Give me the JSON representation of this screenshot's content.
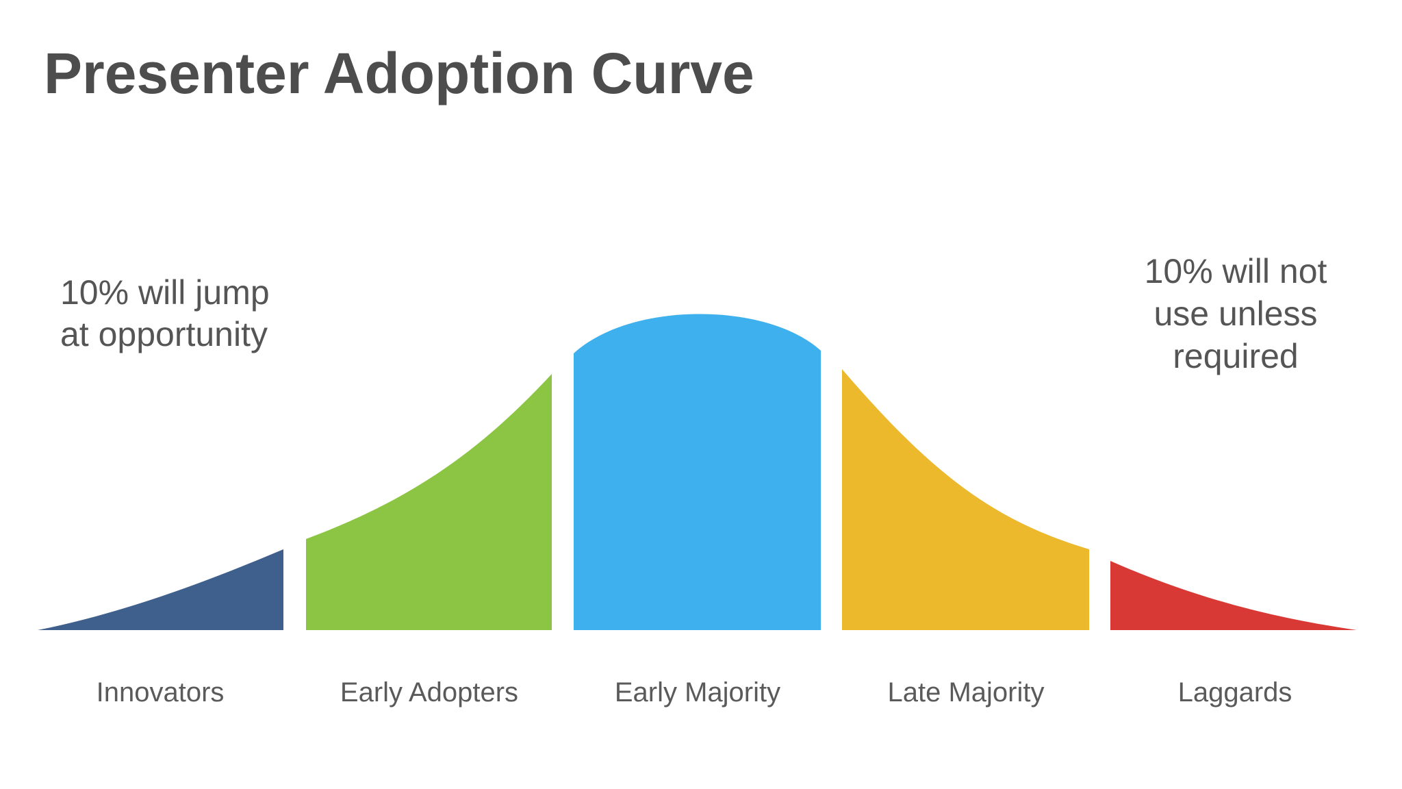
{
  "header": {
    "title": "Presenter Adoption Curve"
  },
  "annotations": {
    "left": {
      "lines": [
        "10% will jump",
        "at opportunity"
      ]
    },
    "right": {
      "lines": [
        "10% will not",
        "use unless",
        "required"
      ]
    }
  },
  "segments": [
    {
      "label": "Innovators"
    },
    {
      "label": "Early Adopters"
    },
    {
      "label": "Early Majority"
    },
    {
      "label": "Late Majority"
    },
    {
      "label": "Laggards"
    }
  ]
}
